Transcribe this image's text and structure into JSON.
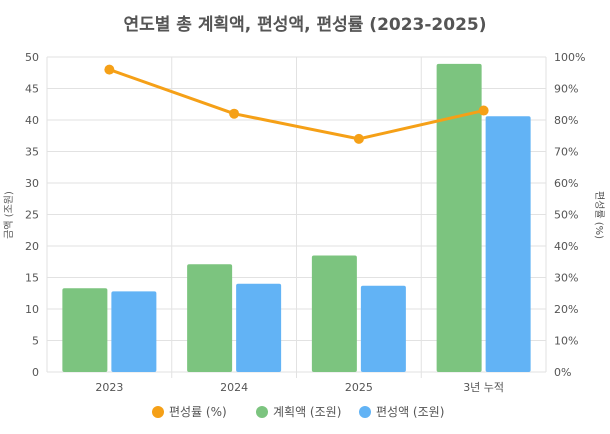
{
  "chart_data": {
    "type": "bar",
    "title": "연도별 총 계획액, 편성액, 편성률 (2023-2025)",
    "categories": [
      "2023",
      "2024",
      "2025",
      "3년 누적"
    ],
    "ylabel": "금액 (조원)",
    "y2label": "편성률 (%)",
    "ylim": [
      0,
      50
    ],
    "yticks": [
      0,
      5,
      10,
      15,
      20,
      25,
      30,
      35,
      40,
      45,
      50
    ],
    "y2lim": [
      0,
      100
    ],
    "y2ticks": [
      "0%",
      "10%",
      "20%",
      "30%",
      "40%",
      "50%",
      "60%",
      "70%",
      "80%",
      "90%",
      "100%"
    ],
    "grid": true,
    "legend_position": "bottom",
    "series": [
      {
        "name": "계획액 (조원)",
        "type": "bar",
        "axis": "left",
        "color": "#7cc47f",
        "values": [
          13.3,
          17.1,
          18.5,
          48.9
        ]
      },
      {
        "name": "편성액 (조원)",
        "type": "bar",
        "axis": "left",
        "color": "#62b3f5",
        "values": [
          12.8,
          14.0,
          13.7,
          40.6
        ]
      },
      {
        "name": "편성률 (%)",
        "type": "line",
        "axis": "right",
        "color": "#f5a017",
        "values": [
          96,
          82,
          74,
          83
        ]
      }
    ]
  }
}
